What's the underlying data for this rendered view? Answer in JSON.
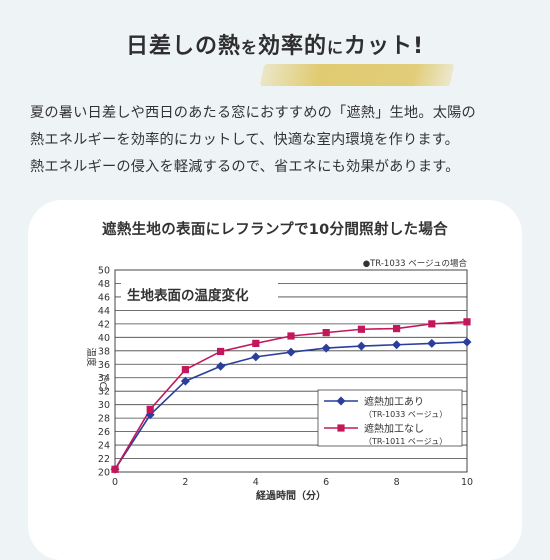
{
  "headline": {
    "part1": "日差しの熱",
    "part2": "を",
    "part3": "効率的",
    "part4": "に",
    "part5": "カット!"
  },
  "intro": [
    "夏の暑い日差しや西日のあたる窓におすすめの「遮熱」生地。太陽の",
    "熱エネルギーを効率的にカットして、快適な室内環境を作ります。",
    "熱エネルギーの侵入を軽減するので、省エネにも効果があります。"
  ],
  "chart_data": {
    "type": "line",
    "title": "遮熱生地の表面にレフランプで10分間照射した場合",
    "subtitle": "●TR-1033 ベージュの場合",
    "inner_title": "生地表面の温度変化",
    "xlabel": "経過時間（分）",
    "ylabel": [
      "温度",
      "（℃）"
    ],
    "x": [
      0,
      1,
      2,
      3,
      4,
      5,
      6,
      7,
      8,
      9,
      10
    ],
    "xlim": [
      0,
      10
    ],
    "ylim": [
      20,
      50
    ],
    "xticks": [
      0,
      2,
      4,
      6,
      8,
      10
    ],
    "yticks": [
      20,
      22,
      24,
      26,
      28,
      30,
      32,
      34,
      36,
      38,
      40,
      42,
      44,
      46,
      48,
      50
    ],
    "grid": true,
    "legend_position": "lower-right",
    "series": [
      {
        "name": "遮熱加工あり",
        "sub": "（TR-1033 ベージュ）",
        "color": "#2a3f9c",
        "marker": "diamond",
        "values": [
          20.4,
          28.5,
          33.5,
          35.7,
          37.1,
          37.8,
          38.4,
          38.7,
          38.9,
          39.1,
          39.3
        ]
      },
      {
        "name": "遮熱加工なし",
        "sub": "（TR-1011 ベージュ）",
        "color": "#c2185b",
        "marker": "square",
        "values": [
          20.4,
          29.3,
          35.2,
          37.9,
          39.1,
          40.2,
          40.7,
          41.2,
          41.3,
          42.0,
          42.3
        ]
      }
    ]
  }
}
